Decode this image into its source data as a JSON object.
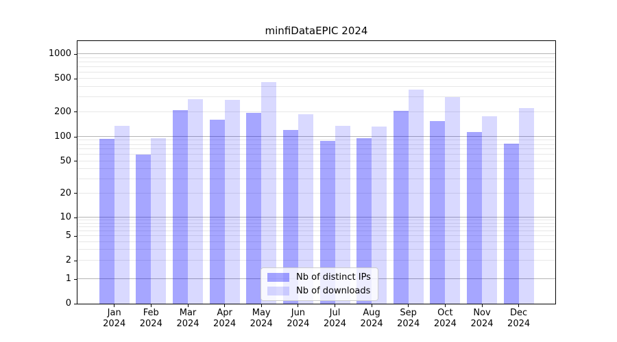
{
  "chart_data": {
    "type": "bar",
    "title": "minfiDataEPIC 2024",
    "x": {
      "months": [
        "Jan",
        "Feb",
        "Mar",
        "Apr",
        "May",
        "Jun",
        "Jul",
        "Aug",
        "Sep",
        "Oct",
        "Nov",
        "Dec"
      ],
      "year": "2024"
    },
    "series": [
      {
        "name": "Nb of distinct IPs",
        "color": "rgba(0,0,255,0.35)",
        "values": [
          95,
          60,
          210,
          160,
          193,
          121,
          89,
          96,
          208,
          155,
          114,
          82
        ]
      },
      {
        "name": "Nb of downloads",
        "color": "rgba(0,0,255,0.15)",
        "values": [
          135,
          96,
          285,
          280,
          460,
          186,
          136,
          134,
          369,
          304,
          176,
          224
        ]
      }
    ],
    "ylabel": "",
    "xlabel": "",
    "y_axis": {
      "scale": "symlog",
      "tick_values": [
        1000,
        500,
        200,
        100,
        50,
        20,
        10,
        5,
        2,
        1,
        0
      ],
      "tick_labels": [
        "1000",
        "500",
        "200",
        "100",
        "50",
        "20",
        "10",
        "5",
        "2",
        "1",
        "0"
      ],
      "minor_tick_values": [
        3,
        4,
        6,
        7,
        8,
        9,
        30,
        40,
        60,
        70,
        80,
        90,
        300,
        400,
        600,
        700,
        800,
        900
      ],
      "ylim_top": 1400
    },
    "grid": "both",
    "legend_position": "lower center"
  },
  "colors": {
    "grid_major": "#b3b3b3",
    "grid_minor": "#e7e7e7",
    "axis": "#000000",
    "legend_border": "#cccccc"
  }
}
